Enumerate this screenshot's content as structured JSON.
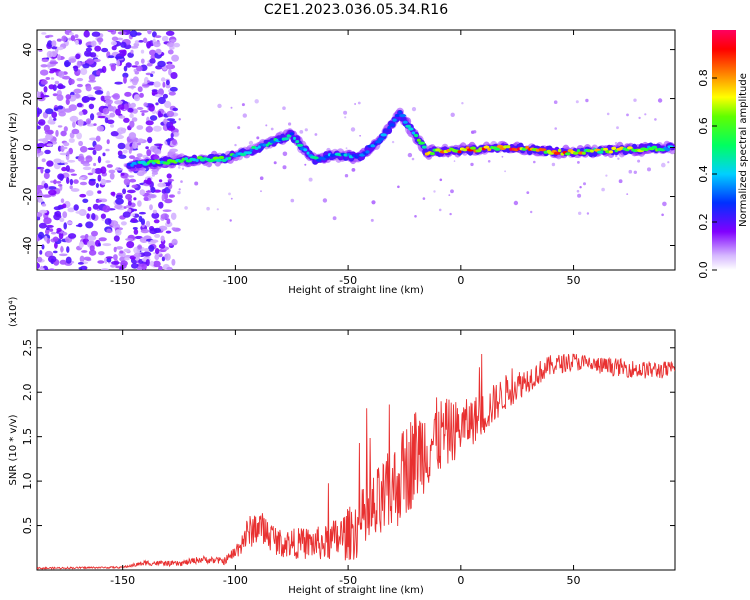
{
  "title": "C2E1.2023.036.05.34.R16",
  "chart_data": [
    {
      "type": "heatmap",
      "xlabel": "Height of straight line (km)",
      "ylabel": "Frequency (Hz)",
      "xlim": [
        -188,
        95
      ],
      "ylim": [
        -50,
        48
      ],
      "xticks": [
        -150,
        -100,
        -50,
        0,
        50
      ],
      "yticks": [
        40,
        20,
        0,
        -20,
        -40
      ],
      "colorbar": {
        "label": "Normalized spectral amplitude",
        "range": [
          0,
          1
        ],
        "ticks": [
          0.0,
          0.2,
          0.4,
          0.6,
          0.8
        ],
        "tick_labels": [
          "0.0",
          "0.2",
          "0.4",
          "0.6",
          "0.8"
        ]
      },
      "ridge": [
        {
          "x": -147,
          "y": -7,
          "amp": 0.35
        },
        {
          "x": -135,
          "y": -6,
          "amp": 0.6
        },
        {
          "x": -120,
          "y": -5,
          "amp": 0.6
        },
        {
          "x": -105,
          "y": -4.5,
          "amp": 0.6
        },
        {
          "x": -95,
          "y": -2,
          "amp": 0.55
        },
        {
          "x": -85,
          "y": 2,
          "amp": 0.5
        },
        {
          "x": -75,
          "y": 5,
          "amp": 0.45
        },
        {
          "x": -65,
          "y": -5,
          "amp": 0.45
        },
        {
          "x": -55,
          "y": -3,
          "amp": 0.45
        },
        {
          "x": -45,
          "y": -4,
          "amp": 0.4
        },
        {
          "x": -35,
          "y": 4,
          "amp": 0.4
        },
        {
          "x": -27,
          "y": 14,
          "amp": 0.3
        },
        {
          "x": -15,
          "y": -2,
          "amp": 0.75
        },
        {
          "x": 0,
          "y": -1,
          "amp": 0.85
        },
        {
          "x": 20,
          "y": 0,
          "amp": 0.9
        },
        {
          "x": 45,
          "y": -2,
          "amp": 0.85
        },
        {
          "x": 70,
          "y": -1,
          "amp": 0.7
        },
        {
          "x": 94,
          "y": 0,
          "amp": 0.55
        }
      ]
    },
    {
      "type": "line",
      "xlabel": "Height of straight line (km)",
      "ylabel": "SNR (10 * v/v)",
      "scale_label": "(x10⁴)",
      "xlim": [
        -188,
        95
      ],
      "ylim": [
        0,
        2.7
      ],
      "xticks": [
        -150,
        -100,
        -50,
        0,
        50
      ],
      "yticks": [
        0.5,
        1.0,
        1.5,
        2.0,
        2.5
      ],
      "series": [
        {
          "color": "#e83030",
          "x": [
            -188,
            -150,
            -140,
            -125,
            -115,
            -105,
            -100,
            -95,
            -90,
            -80,
            -70,
            -60,
            -50,
            -40,
            -30,
            -20,
            -10,
            0,
            10,
            20,
            30,
            40,
            50,
            60,
            70,
            80,
            95
          ],
          "y": [
            0.02,
            0.03,
            0.08,
            0.07,
            0.12,
            0.1,
            0.2,
            0.4,
            0.5,
            0.3,
            0.3,
            0.3,
            0.4,
            0.6,
            0.9,
            1.3,
            1.5,
            1.6,
            1.75,
            2.0,
            2.15,
            2.3,
            2.35,
            2.3,
            2.28,
            2.25,
            2.25
          ],
          "noise": [
            0.01,
            0.01,
            0.03,
            0.03,
            0.04,
            0.04,
            0.08,
            0.18,
            0.2,
            0.16,
            0.18,
            0.2,
            0.3,
            0.45,
            0.5,
            0.55,
            0.45,
            0.3,
            0.25,
            0.2,
            0.15,
            0.12,
            0.1,
            0.1,
            0.1,
            0.1,
            0.1
          ]
        }
      ]
    }
  ]
}
